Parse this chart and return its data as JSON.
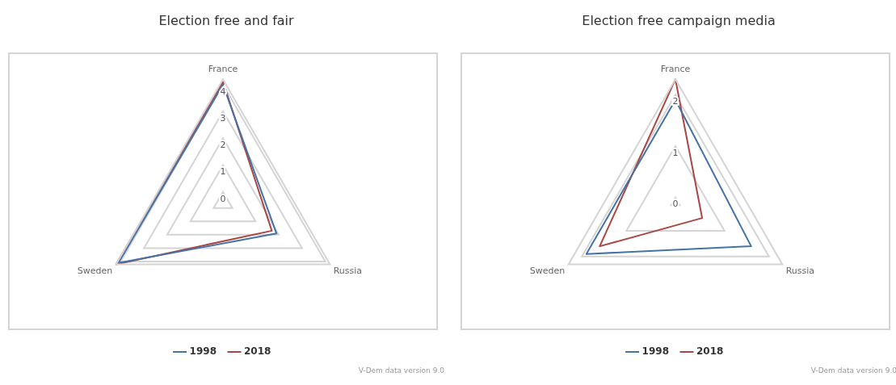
{
  "chart_data": [
    {
      "type": "radar",
      "title": "Election free and fair",
      "categories": [
        "France",
        "Russia",
        "Sweden"
      ],
      "series": [
        {
          "name": "1998",
          "color": "#4572a7",
          "values": [
            4.0,
            1.9,
            4.1
          ]
        },
        {
          "name": "2018",
          "color": "#aa4643",
          "values": [
            4.1,
            1.7,
            4.2
          ]
        }
      ],
      "ylim": [
        -0.4,
        4.2
      ],
      "yticks": [
        0,
        1,
        2,
        3,
        4
      ],
      "grid": true,
      "legend": "bottom",
      "annotations": [
        "V-Dem data version 9.0"
      ]
    },
    {
      "type": "radar",
      "title": "Election free campaign media",
      "categories": [
        "France",
        "Russia",
        "Sweden"
      ],
      "series": [
        {
          "name": "1998",
          "color": "#4572a7",
          "values": [
            1.9,
            1.6,
            1.9
          ]
        },
        {
          "name": "2018",
          "color": "#aa4643",
          "values": [
            2.3,
            0.5,
            1.6
          ]
        }
      ],
      "ylim": [
        -0.1,
        2.3
      ],
      "yticks": [
        0,
        1,
        2
      ],
      "grid": true,
      "legend": "bottom",
      "annotations": [
        "V-Dem data version 9.0"
      ]
    }
  ]
}
